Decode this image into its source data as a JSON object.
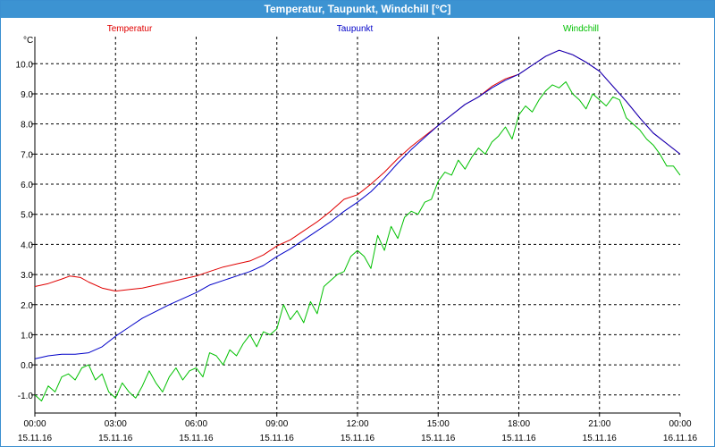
{
  "window": {
    "title": "Temperatur, Taupunkt, Windchill [°C]"
  },
  "chart_data": {
    "type": "line",
    "title": "Temperatur, Taupunkt, Windchill [°C]",
    "ylabel": "°C",
    "xlabel": "",
    "ylim": [
      -1.6,
      10.9
    ],
    "xlim": [
      0,
      24
    ],
    "grid": true,
    "legend_placement": "top",
    "y_ticks": [
      "-1.0",
      "0.0",
      "1.0",
      "2.0",
      "3.0",
      "4.0",
      "5.0",
      "6.0",
      "7.0",
      "8.0",
      "9.0",
      "10.0"
    ],
    "x_ticks": [
      {
        "time": "00:00",
        "date": "15.11.16"
      },
      {
        "time": "03:00",
        "date": "15.11.16"
      },
      {
        "time": "06:00",
        "date": "15.11.16"
      },
      {
        "time": "09:00",
        "date": "15.11.16"
      },
      {
        "time": "12:00",
        "date": "15.11.16"
      },
      {
        "time": "15:00",
        "date": "15.11.16"
      },
      {
        "time": "18:00",
        "date": "15.11.16"
      },
      {
        "time": "21:00",
        "date": "15.11.16"
      },
      {
        "time": "00:00",
        "date": "16.11.16"
      }
    ],
    "series": [
      {
        "name": "Temperatur",
        "color": "#e00000",
        "x": [
          0,
          0.5,
          1,
          1.3,
          1.7,
          2,
          2.5,
          3,
          3.5,
          4,
          5,
          6,
          6.5,
          7,
          7.5,
          8,
          8.5,
          9,
          9.5,
          10,
          10.5,
          11,
          11.5,
          12,
          12.5,
          13,
          13.5,
          14,
          14.5,
          15,
          15.5,
          16,
          16.5,
          17,
          17.5,
          18,
          18.5,
          19,
          19.5,
          20,
          20.5,
          21,
          21.5,
          22,
          22.5,
          23,
          23.5,
          24
        ],
        "values": [
          2.6,
          2.7,
          2.85,
          2.95,
          2.9,
          2.75,
          2.55,
          2.45,
          2.5,
          2.55,
          2.75,
          2.95,
          3.1,
          3.25,
          3.35,
          3.45,
          3.65,
          3.95,
          4.15,
          4.45,
          4.75,
          5.1,
          5.5,
          5.65,
          6.0,
          6.4,
          6.85,
          7.25,
          7.6,
          7.95,
          8.3,
          8.65,
          8.9,
          9.25,
          9.5,
          9.65,
          9.95,
          10.25,
          10.45,
          10.3,
          10.05,
          9.75,
          9.25,
          8.75,
          8.2,
          7.7,
          7.35,
          7.0
        ]
      },
      {
        "name": "Taupunkt",
        "color": "#0000c8",
        "x": [
          0,
          0.5,
          1,
          1.5,
          2,
          2.5,
          3,
          3.5,
          4,
          5,
          6,
          6.5,
          7,
          7.5,
          8,
          8.5,
          9,
          9.5,
          10,
          10.5,
          11,
          11.5,
          12,
          12.5,
          13,
          13.5,
          14,
          14.5,
          15,
          15.5,
          16,
          16.5,
          17,
          17.5,
          18,
          18.5,
          19,
          19.5,
          20,
          20.5,
          21,
          21.5,
          22,
          22.5,
          23,
          23.5,
          24
        ],
        "values": [
          0.2,
          0.3,
          0.35,
          0.35,
          0.4,
          0.6,
          0.95,
          1.25,
          1.55,
          2.0,
          2.4,
          2.65,
          2.8,
          2.95,
          3.1,
          3.3,
          3.6,
          3.85,
          4.15,
          4.45,
          4.75,
          5.1,
          5.4,
          5.75,
          6.2,
          6.7,
          7.15,
          7.55,
          7.95,
          8.3,
          8.65,
          8.9,
          9.2,
          9.45,
          9.65,
          9.95,
          10.25,
          10.45,
          10.3,
          10.05,
          9.75,
          9.25,
          8.75,
          8.2,
          7.7,
          7.35,
          7.0
        ]
      },
      {
        "name": "Windchill",
        "color": "#00c000",
        "x": [
          0,
          0.25,
          0.5,
          0.75,
          1,
          1.25,
          1.5,
          1.75,
          2,
          2.25,
          2.5,
          2.75,
          3,
          3.25,
          3.5,
          3.75,
          4,
          4.25,
          4.5,
          4.75,
          5,
          5.25,
          5.5,
          5.75,
          6,
          6.25,
          6.5,
          6.75,
          7,
          7.25,
          7.5,
          7.75,
          8,
          8.25,
          8.5,
          8.75,
          9,
          9.25,
          9.5,
          9.75,
          10,
          10.25,
          10.5,
          10.75,
          11,
          11.25,
          11.5,
          11.75,
          12,
          12.25,
          12.5,
          12.75,
          13,
          13.25,
          13.5,
          13.75,
          14,
          14.25,
          14.5,
          14.75,
          15,
          15.25,
          15.5,
          15.75,
          16,
          16.25,
          16.5,
          16.75,
          17,
          17.25,
          17.5,
          17.75,
          18,
          18.25,
          18.5,
          18.75,
          19,
          19.25,
          19.5,
          19.75,
          20,
          20.25,
          20.5,
          20.75,
          21,
          21.25,
          21.5,
          21.75,
          22,
          22.25,
          22.5,
          22.75,
          23,
          23.25,
          23.5,
          23.75,
          24
        ],
        "values": [
          -1.0,
          -1.2,
          -0.7,
          -0.9,
          -0.4,
          -0.3,
          -0.5,
          -0.1,
          0.0,
          -0.5,
          -0.3,
          -0.9,
          -1.1,
          -0.6,
          -0.9,
          -1.1,
          -0.7,
          -0.2,
          -0.6,
          -0.9,
          -0.4,
          -0.1,
          -0.5,
          -0.2,
          -0.1,
          -0.4,
          0.4,
          0.3,
          0.0,
          0.5,
          0.3,
          0.7,
          1.0,
          0.6,
          1.1,
          1.0,
          1.2,
          2.0,
          1.5,
          1.8,
          1.4,
          2.1,
          1.7,
          2.6,
          2.8,
          3.0,
          3.1,
          3.6,
          3.8,
          3.6,
          3.2,
          4.3,
          3.8,
          4.6,
          4.2,
          4.9,
          5.1,
          5.0,
          5.4,
          5.5,
          6.1,
          6.4,
          6.3,
          6.8,
          6.5,
          6.9,
          7.2,
          7.0,
          7.4,
          7.6,
          7.9,
          7.5,
          8.3,
          8.6,
          8.4,
          8.8,
          9.1,
          9.3,
          9.2,
          9.4,
          9.0,
          8.8,
          8.5,
          9.0,
          8.8,
          8.6,
          8.9,
          8.8,
          8.2,
          8.0,
          7.8,
          7.5,
          7.3,
          7.0,
          6.6,
          6.6,
          6.3
        ]
      }
    ]
  }
}
